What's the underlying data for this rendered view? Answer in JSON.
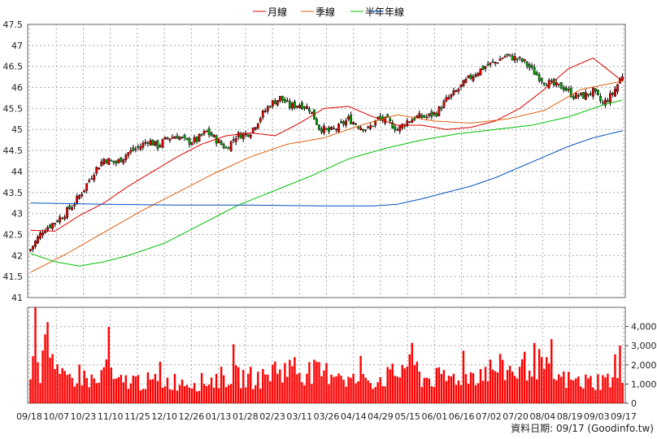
{
  "chart_data": {
    "type": "line",
    "legend": {
      "placement": "top-center",
      "items": [
        {
          "label": "月線",
          "color": "#e00000"
        },
        {
          "label": "季線",
          "color": "#e06010"
        },
        {
          "label": "半年",
          "color": "#00c000"
        },
        {
          "label": "年線",
          "color": "#0050c0"
        }
      ]
    },
    "price_axis": {
      "ylim": [
        41,
        47.5
      ],
      "ticks": [
        "47.5",
        "47",
        "46.5",
        "46",
        "45.5",
        "45",
        "44.5",
        "44",
        "43.5",
        "43",
        "42.5",
        "42",
        "41.5",
        "41"
      ],
      "tick_values": [
        47.5,
        47,
        46.5,
        46,
        45.5,
        45,
        44.5,
        44,
        43.5,
        43,
        42.5,
        42,
        41.5,
        41
      ]
    },
    "volume_axis": {
      "ylim": [
        0,
        5000
      ],
      "ticks": [
        "4,000",
        "3,000",
        "2,000",
        "1,000",
        "0"
      ],
      "tick_values": [
        4000,
        3000,
        2000,
        1000,
        0
      ]
    },
    "x_labels": [
      "09/18",
      "10/07",
      "10/23",
      "11/10",
      "11/25",
      "12/10",
      "12/26",
      "01/13",
      "01/28",
      "02/23",
      "03/11",
      "03/26",
      "04/14",
      "04/29",
      "05/15",
      "06/01",
      "06/16",
      "07/02",
      "07/20",
      "08/04",
      "08/19",
      "09/03",
      "09/17"
    ],
    "n_sessions": 243,
    "series": [
      {
        "name": "月線",
        "color": "#e00000",
        "x": [
          0,
          10,
          20,
          30,
          40,
          50,
          60,
          70,
          80,
          90,
          100,
          110,
          120,
          130,
          140,
          150,
          160,
          170,
          180,
          190,
          200,
          210,
          220,
          230,
          242
        ],
        "y": [
          42.6,
          42.58,
          42.95,
          43.25,
          43.65,
          44.0,
          44.35,
          44.65,
          44.85,
          44.92,
          44.85,
          45.15,
          45.5,
          45.55,
          45.3,
          45.1,
          45.1,
          45.0,
          45.05,
          45.2,
          45.5,
          45.95,
          46.45,
          46.7,
          46.15
        ]
      },
      {
        "name": "季線",
        "color": "#e06010",
        "x": [
          0,
          15,
          30,
          45,
          60,
          75,
          90,
          105,
          120,
          135,
          150,
          165,
          180,
          195,
          210,
          225,
          242
        ],
        "y": [
          41.6,
          42.05,
          42.55,
          43.05,
          43.5,
          43.95,
          44.35,
          44.65,
          44.8,
          45.1,
          45.35,
          45.2,
          45.15,
          45.25,
          45.45,
          45.95,
          46.15
        ]
      },
      {
        "name": "半年",
        "color": "#00c000",
        "x": [
          0,
          10,
          20,
          30,
          40,
          55,
          70,
          85,
          100,
          115,
          130,
          145,
          160,
          175,
          190,
          205,
          220,
          235,
          242
        ],
        "y": [
          42.05,
          41.85,
          41.75,
          41.85,
          42.0,
          42.3,
          42.75,
          43.2,
          43.55,
          43.9,
          44.3,
          44.55,
          44.75,
          44.9,
          45.0,
          45.1,
          45.3,
          45.6,
          45.7
        ]
      },
      {
        "name": "年線",
        "color": "#0050c0",
        "x": [
          0,
          30,
          60,
          90,
          120,
          140,
          150,
          160,
          170,
          180,
          190,
          200,
          210,
          220,
          230,
          242
        ],
        "y": [
          43.25,
          43.22,
          43.2,
          43.2,
          43.18,
          43.18,
          43.22,
          43.35,
          43.5,
          43.65,
          43.85,
          44.1,
          44.35,
          44.6,
          44.8,
          44.97
        ]
      }
    ],
    "close_anchor_x": [
      0,
      5,
      10,
      14,
      18,
      22,
      26,
      30,
      35,
      40,
      45,
      48,
      52,
      56,
      60,
      64,
      68,
      72,
      76,
      80,
      84,
      88,
      90,
      94,
      98,
      102,
      106,
      110,
      114,
      118,
      122,
      126,
      130,
      134,
      138,
      142,
      146,
      150,
      154,
      158,
      162,
      166,
      170,
      174,
      178,
      182,
      186,
      190,
      194,
      198,
      202,
      206,
      210,
      214,
      218,
      222,
      226,
      230,
      234,
      238,
      242
    ],
    "close_anchor_y": [
      42.15,
      42.6,
      42.8,
      43.0,
      43.25,
      43.6,
      44.0,
      44.3,
      44.2,
      44.45,
      44.6,
      44.75,
      44.6,
      44.8,
      44.85,
      44.7,
      44.75,
      44.95,
      44.75,
      44.55,
      44.85,
      44.9,
      44.95,
      45.3,
      45.6,
      45.75,
      45.55,
      45.6,
      45.5,
      45.05,
      44.95,
      45.05,
      45.25,
      45.1,
      45.0,
      45.25,
      45.2,
      45.0,
      45.2,
      45.3,
      45.3,
      45.4,
      45.7,
      45.9,
      46.15,
      46.35,
      46.5,
      46.6,
      46.75,
      46.7,
      46.6,
      46.35,
      46.15,
      46.05,
      46.0,
      45.8,
      45.8,
      45.9,
      45.6,
      45.85,
      46.3
    ],
    "volume_anchor_x": [
      0,
      2,
      4,
      6,
      10,
      14,
      20,
      28,
      32,
      34,
      40,
      50,
      60,
      70,
      80,
      95,
      100,
      110,
      120,
      125,
      130,
      140,
      150,
      155,
      160,
      170,
      180,
      190,
      200,
      205,
      215,
      225,
      235,
      242
    ],
    "volume_anchor_y": [
      2200,
      5000,
      1600,
      5000,
      1500,
      1200,
      1500,
      1000,
      2800,
      1000,
      1200,
      1100,
      1150,
      1100,
      1400,
      1300,
      1800,
      1700,
      1500,
      1800,
      1200,
      1200,
      1500,
      2400,
      1300,
      1300,
      1500,
      1800,
      1700,
      2300,
      1300,
      1100,
      1200,
      1400
    ]
  },
  "footer": {
    "source": "資料日期: 09/17  (Goodinfo.tw)"
  }
}
